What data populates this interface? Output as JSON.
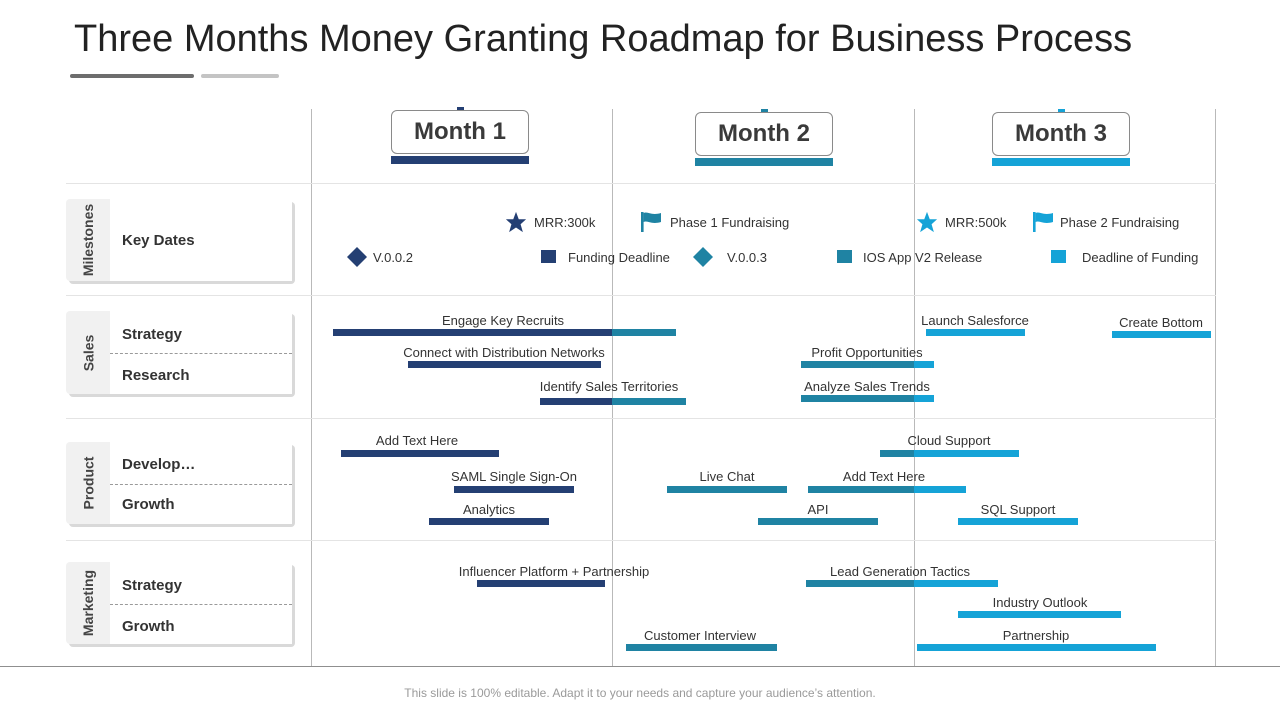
{
  "title": "Three Months Money Granting Roadmap for Business Process",
  "months": [
    "Month 1",
    "Month 2",
    "Month 3"
  ],
  "colors": {
    "dark": "#243f73",
    "mid": "#1f83a3",
    "light": "#15a3d7"
  },
  "groups": {
    "milestones": {
      "label": "Milestones",
      "subs": [
        "Key Dates"
      ]
    },
    "sales": {
      "label": "Sales",
      "subs": [
        "Strategy",
        "Research"
      ]
    },
    "product": {
      "label": "Product",
      "subs": [
        "Develop…",
        "Growth"
      ]
    },
    "marketing": {
      "label": "Marketing",
      "subs": [
        "Strategy",
        "Growth"
      ]
    }
  },
  "milestones": [
    {
      "icon": "star-icon",
      "text": "MRR:300k"
    },
    {
      "icon": "flag-icon",
      "text": "Phase 1 Fundraising"
    },
    {
      "icon": "star-icon",
      "text": "MRR:500k"
    },
    {
      "icon": "flag-icon",
      "text": "Phase 2 Fundraising"
    },
    {
      "icon": "diamond-icon",
      "text": "V.0.0.2"
    },
    {
      "icon": "square-icon",
      "text": "Funding Deadline"
    },
    {
      "icon": "diamond-icon",
      "text": "V.0.0.3"
    },
    {
      "icon": "square-icon",
      "text": "IOS App V2 Release"
    },
    {
      "icon": "square-icon",
      "text": "Deadline of Funding"
    }
  ],
  "tasks": [
    "Engage Key Recruits",
    "Connect with Distribution Networks",
    "Identify Sales Territories",
    "Launch Salesforce",
    "Create Bottom",
    "Profit Opportunities",
    "Analyze Sales Trends",
    "Add Text Here",
    "SAML Single Sign-On",
    "Analytics",
    "Live Chat",
    "Add Text Here",
    "API",
    "Cloud Support",
    "SQL Support",
    "Influencer Platform + Partnership",
    "Customer Interview",
    "Lead Generation Tactics",
    "Industry Outlook",
    "Partnership"
  ],
  "footer": "This slide is 100% editable. Adapt it to your needs and capture your audience’s attention."
}
